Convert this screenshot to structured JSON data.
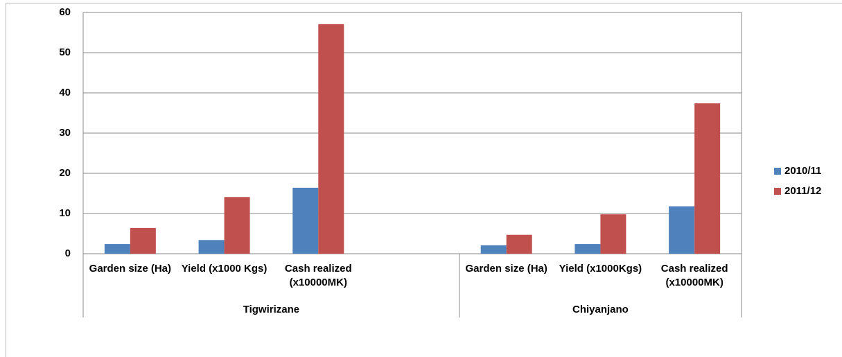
{
  "chart_data": {
    "type": "bar",
    "groups": [
      {
        "name": "Tigwirizane",
        "categories": [
          "Garden size (Ha)",
          "Yield (x1000 Kgs)",
          "Cash realized (x10000MK)",
          null
        ]
      },
      {
        "name": "Chiyanjano",
        "categories": [
          "Garden size (Ha)",
          "Yield (x1000Kgs)",
          "Cash realized (x10000MK)"
        ]
      }
    ],
    "series": [
      {
        "name": "2010/11",
        "color": "#4f81bd",
        "values": [
          2.4,
          3.4,
          16.4,
          null,
          2.1,
          2.4,
          11.8
        ]
      },
      {
        "name": "2011/12",
        "color": "#c0504d",
        "values": [
          6.4,
          14.1,
          57.1,
          null,
          4.7,
          9.8,
          37.4
        ]
      }
    ],
    "ylim": [
      0,
      60
    ],
    "yticks": [
      0,
      10,
      20,
      30,
      40,
      50,
      60
    ],
    "grid": true,
    "legend": "right"
  }
}
